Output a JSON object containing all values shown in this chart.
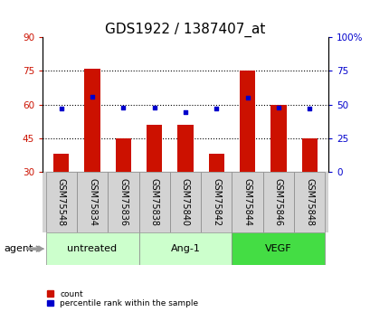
{
  "title": "GDS1922 / 1387407_at",
  "categories": [
    "GSM75548",
    "GSM75834",
    "GSM75836",
    "GSM75838",
    "GSM75840",
    "GSM75842",
    "GSM75844",
    "GSM75846",
    "GSM75848"
  ],
  "bar_bottom": 30,
  "bar_tops": [
    38,
    76,
    45,
    51,
    51,
    38,
    75,
    60,
    45
  ],
  "percentile_values": [
    47,
    56,
    48,
    48,
    44,
    47,
    55,
    48,
    47
  ],
  "bar_color": "#cc1100",
  "dot_color": "#0000cc",
  "ylim_left": [
    30,
    90
  ],
  "ylim_right": [
    0,
    100
  ],
  "yticks_left": [
    30,
    45,
    60,
    75,
    90
  ],
  "yticks_right": [
    0,
    25,
    50,
    75,
    100
  ],
  "ytick_labels_right": [
    "0",
    "25",
    "50",
    "75",
    "100%"
  ],
  "grid_lines": [
    45,
    60,
    75
  ],
  "bar_width": 0.5,
  "legend_count": "count",
  "legend_percentile": "percentile rank within the sample",
  "bg_color": "#ffffff",
  "plot_bg": "#ffffff",
  "tick_color_left": "#cc1100",
  "tick_color_right": "#0000cc",
  "title_fontsize": 11,
  "tick_fontsize": 7.5,
  "label_fontsize": 7,
  "group_info": [
    {
      "label": "untreated",
      "start": 0,
      "end": 2,
      "color": "#ccffcc"
    },
    {
      "label": "Ang-1",
      "start": 3,
      "end": 5,
      "color": "#ccffcc"
    },
    {
      "label": "VEGF",
      "start": 6,
      "end": 8,
      "color": "#44dd44"
    }
  ]
}
